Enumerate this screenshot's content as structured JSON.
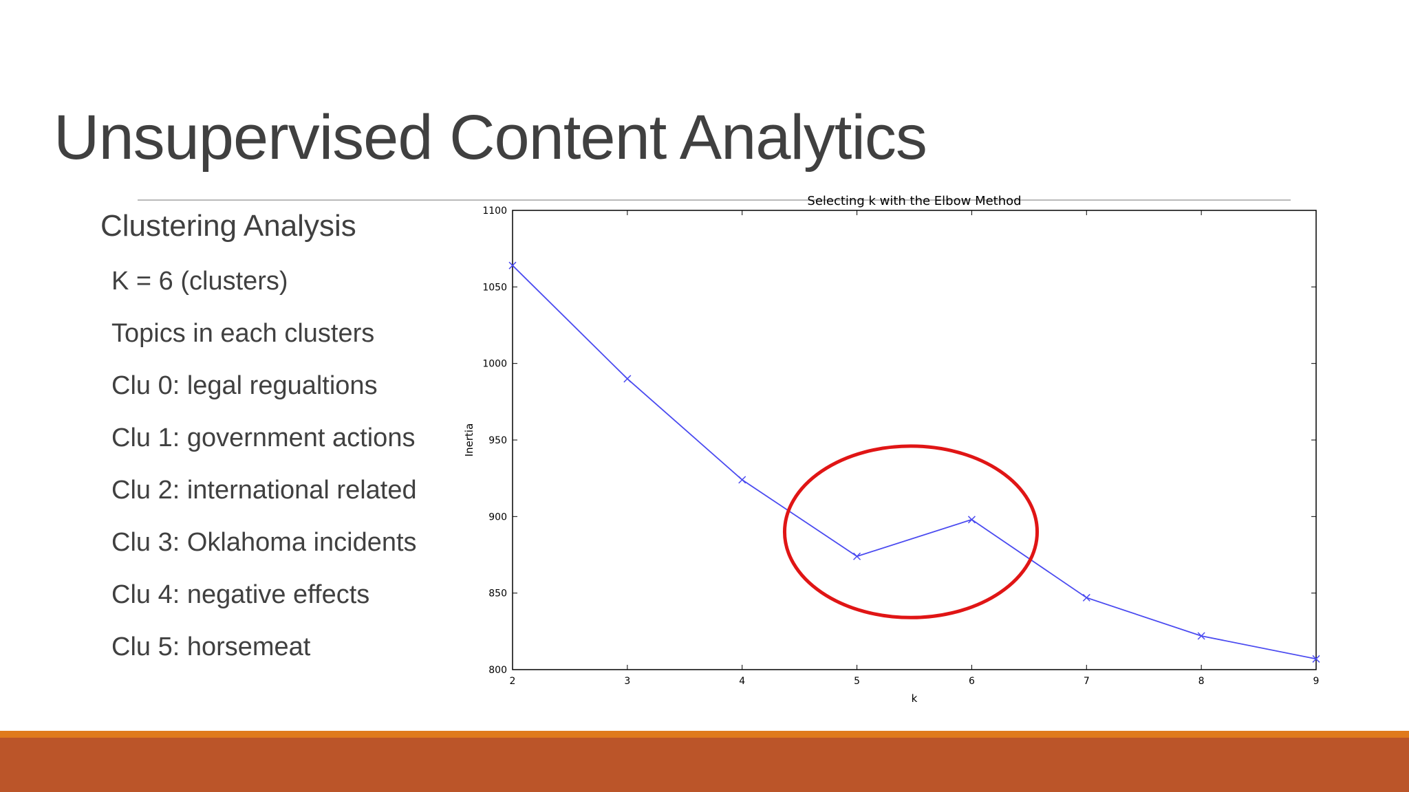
{
  "slide": {
    "title": "Unsupervised Content Analytics",
    "heading": "Clustering Analysis",
    "items": [
      "K = 6 (clusters)",
      "Topics in each clusters",
      "Clu 0: legal regualtions",
      "Clu 1: government actions",
      "Clu 2: international related",
      "Clu 3: Oklahoma incidents",
      "Clu 4: negative effects",
      "Clu 5: horsemeat"
    ]
  },
  "colors": {
    "line": "#4a4af0",
    "annotation_circle": "#e01515",
    "footer_orange": "#e07a1c",
    "footer_rust": "#bb5529"
  },
  "chart_data": {
    "type": "line",
    "title": "Selecting k with the Elbow Method",
    "xlabel": "k",
    "ylabel": "Inertia",
    "x": [
      2,
      3,
      4,
      5,
      6,
      7,
      8,
      9
    ],
    "series": [
      {
        "values": [
          1064,
          990,
          924,
          874,
          898,
          847,
          822,
          807
        ]
      }
    ],
    "xlim": [
      2,
      9
    ],
    "ylim": [
      800,
      1100
    ],
    "xticks": [
      "2",
      "3",
      "4",
      "5",
      "6",
      "7",
      "8",
      "9"
    ],
    "yticks": [
      "800",
      "850",
      "900",
      "950",
      "1000",
      "1050",
      "1100"
    ],
    "marker": "x",
    "grid": false,
    "annotation": {
      "shape": "ellipse",
      "center_x": 5.47,
      "center_y": 890,
      "radius_x": 1.1,
      "radius_y": 56
    }
  }
}
